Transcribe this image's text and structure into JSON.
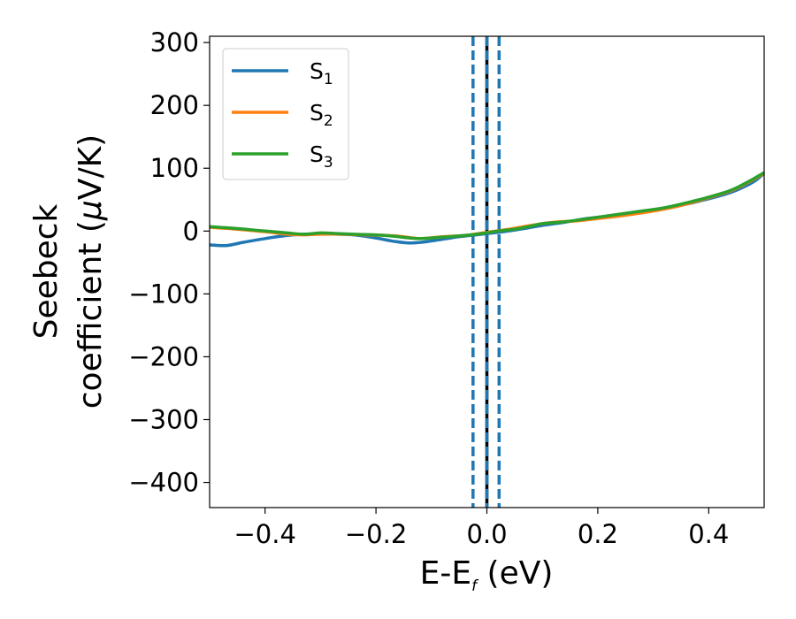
{
  "chart_data": {
    "type": "line",
    "xlabel": {
      "main": "E-E",
      "sub": "f",
      "unit": " (eV)"
    },
    "ylabel": {
      "line1": "Seebeck",
      "line2": "coefficient  (",
      "mu": "μ",
      "line2_end": "V/K)"
    },
    "xlim": [
      -0.5,
      0.5
    ],
    "ylim": [
      -440,
      310
    ],
    "xticks": [
      -0.4,
      -0.2,
      0.0,
      0.2,
      0.4
    ],
    "xtick_labels": [
      "−0.4",
      "−0.2",
      "0.0",
      "0.2",
      "0.4"
    ],
    "yticks": [
      -400,
      -300,
      -200,
      -100,
      0,
      100,
      200,
      300
    ],
    "ytick_labels": [
      "−400",
      "−300",
      "−200",
      "−100",
      "0",
      "100",
      "200",
      "300"
    ],
    "grid": false,
    "legend_position": "top-left",
    "series": [
      {
        "name": "S",
        "sub": "1",
        "color": "#1f77b4",
        "x": [
          -0.5,
          -0.47,
          -0.44,
          -0.4,
          -0.36,
          -0.33,
          -0.3,
          -0.27,
          -0.24,
          -0.2,
          -0.17,
          -0.14,
          -0.11,
          -0.08,
          -0.05,
          -0.02,
          0.0,
          0.03,
          0.06,
          0.1,
          0.14,
          0.18,
          0.22,
          0.26,
          0.3,
          0.34,
          0.38,
          0.42,
          0.45,
          0.48,
          0.5
        ],
        "y": [
          -22,
          -23,
          -18,
          -12,
          -7,
          -5,
          -4,
          -5,
          -6,
          -11,
          -16,
          -19,
          -17,
          -13,
          -9,
          -6,
          -4,
          -1,
          3,
          9,
          14,
          20,
          24,
          28,
          33,
          39,
          47,
          56,
          65,
          78,
          92
        ]
      },
      {
        "name": "S",
        "sub": "2",
        "color": "#ff7f0e",
        "x": [
          -0.5,
          -0.45,
          -0.4,
          -0.36,
          -0.33,
          -0.3,
          -0.26,
          -0.22,
          -0.18,
          -0.15,
          -0.12,
          -0.08,
          -0.04,
          0.0,
          0.04,
          0.08,
          0.12,
          0.16,
          0.2,
          0.24,
          0.28,
          0.32,
          0.36,
          0.4,
          0.44,
          0.47,
          0.5
        ],
        "y": [
          6,
          3,
          -1,
          -5,
          -6,
          -5,
          -5,
          -6,
          -7,
          -9,
          -12,
          -9,
          -7,
          -2,
          3,
          9,
          14,
          16,
          20,
          24,
          29,
          35,
          43,
          53,
          64,
          77,
          92
        ]
      },
      {
        "name": "S",
        "sub": "3",
        "color": "#2ca02c",
        "x": [
          -0.5,
          -0.45,
          -0.4,
          -0.36,
          -0.33,
          -0.3,
          -0.27,
          -0.24,
          -0.2,
          -0.17,
          -0.14,
          -0.12,
          -0.1,
          -0.07,
          -0.04,
          -0.01,
          0.02,
          0.05,
          0.08,
          0.1,
          0.13,
          0.16,
          0.2,
          0.24,
          0.28,
          0.32,
          0.36,
          0.4,
          0.44,
          0.47,
          0.5
        ],
        "y": [
          7,
          4,
          0,
          -3,
          -5,
          -3,
          -4,
          -5,
          -6,
          -8,
          -11,
          -12,
          -11,
          -9,
          -7,
          -4,
          0,
          3,
          8,
          12,
          14,
          17,
          22,
          27,
          32,
          37,
          45,
          54,
          65,
          78,
          93
        ]
      }
    ],
    "vlines": [
      {
        "x": -0.025,
        "color": "#1f77b4",
        "style": "dashed"
      },
      {
        "x": 0.0,
        "color": "#000000",
        "style": "solid"
      },
      {
        "x": 0.0,
        "color": "#1f77b4",
        "style": "dashed"
      },
      {
        "x": 0.022,
        "color": "#1f77b4",
        "style": "dashed"
      }
    ]
  }
}
